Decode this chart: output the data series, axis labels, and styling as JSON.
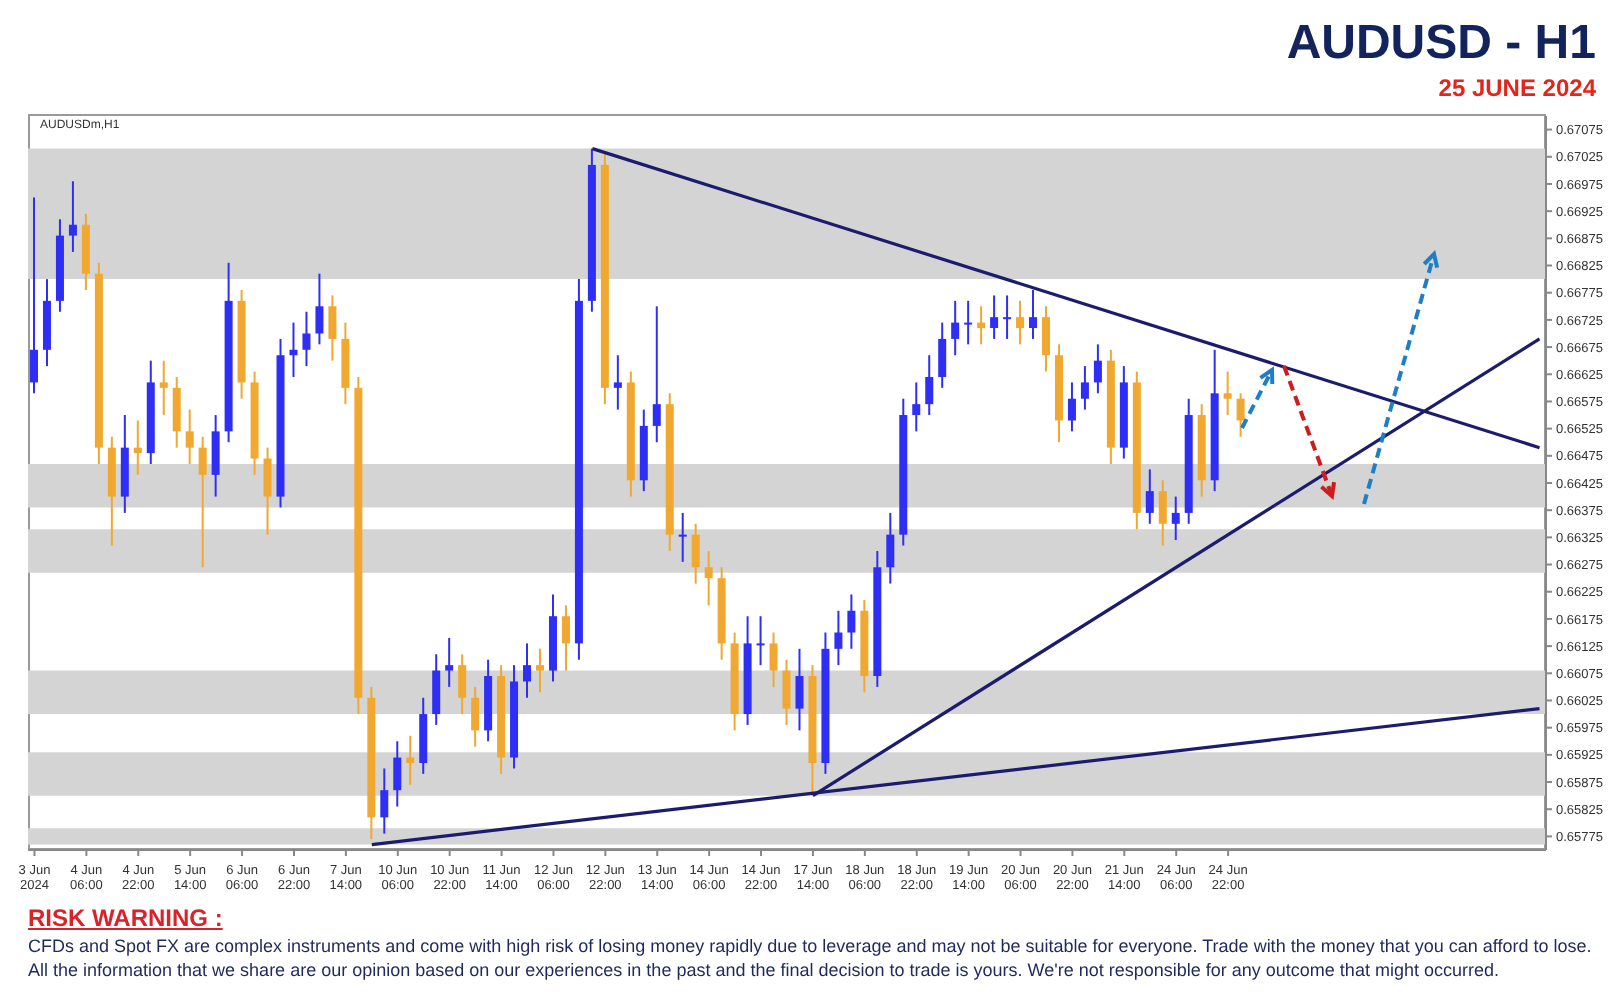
{
  "chart_data": {
    "type": "candlestick",
    "title": "AUDUSD - H1",
    "subtitle": "25 JUNE 2024",
    "annotations": [
      "AUDUSDm,H1",
      "RISK WARNING :",
      "CFDs and Spot FX are complex instruments and come with high risk of losing money rapidly due to leverage and may not be suitable for everyone. Trade with the money that you can afford to lose. All the information that we share are our opinion based on our experiences in the past and the final decision to trade is yours. We're not responsible for any outcome that might occurred."
    ],
    "categories": [
      "3 Jun 2024",
      null,
      null,
      null,
      "4 Jun 06:00",
      null,
      null,
      null,
      "4 Jun 22:00",
      null,
      null,
      null,
      "5 Jun 14:00",
      null,
      null,
      null,
      "6 Jun 06:00",
      null,
      null,
      null,
      "6 Jun 22:00",
      null,
      null,
      null,
      "7 Jun 14:00",
      null,
      null,
      null,
      "10 Jun 06:00",
      null,
      null,
      null,
      "10 Jun 22:00",
      null,
      null,
      null,
      "11 Jun 14:00",
      null,
      null,
      null,
      "12 Jun 06:00",
      null,
      null,
      null,
      "12 Jun 22:00",
      null,
      null,
      null,
      "13 Jun 14:00",
      null,
      null,
      null,
      "14 Jun 06:00",
      null,
      null,
      null,
      "14 Jun 22:00",
      null,
      null,
      null,
      "17 Jun 14:00",
      null,
      null,
      null,
      "18 Jun 06:00",
      null,
      null,
      null,
      "18 Jun 22:00",
      null,
      null,
      null,
      "19 Jun 14:00",
      null,
      null,
      null,
      "20 Jun 06:00",
      null,
      null,
      null,
      "20 Jun 22:00",
      null,
      null,
      null,
      "21 Jun 14:00",
      null,
      null,
      null,
      "24 Jun 06:00",
      null,
      null,
      null,
      "24 Jun 22:00",
      null,
      null,
      null,
      null,
      null,
      null,
      null,
      null,
      null,
      null,
      null,
      null,
      null,
      null,
      null,
      null,
      null,
      null,
      null,
      null,
      null,
      null,
      null,
      null
    ],
    "ohlc": [
      [
        0.6661,
        0.6695,
        0.6659,
        0.6667
      ],
      [
        0.6667,
        0.668,
        0.6664,
        0.6676
      ],
      [
        0.6676,
        0.6691,
        0.6674,
        0.6688
      ],
      [
        0.6688,
        0.6698,
        0.6685,
        0.669
      ],
      [
        0.669,
        0.6692,
        0.6678,
        0.6681
      ],
      [
        0.6681,
        0.6683,
        0.6646,
        0.6649
      ],
      [
        0.6649,
        0.6651,
        0.6631,
        0.664
      ],
      [
        0.664,
        0.6655,
        0.6637,
        0.6649
      ],
      [
        0.6649,
        0.6654,
        0.6644,
        0.6648
      ],
      [
        0.6648,
        0.6665,
        0.6646,
        0.6661
      ],
      [
        0.6661,
        0.6665,
        0.6655,
        0.666
      ],
      [
        0.666,
        0.6662,
        0.6649,
        0.6652
      ],
      [
        0.6652,
        0.6656,
        0.6646,
        0.6649
      ],
      [
        0.6649,
        0.6651,
        0.6627,
        0.6644
      ],
      [
        0.6644,
        0.6655,
        0.664,
        0.6652
      ],
      [
        0.6652,
        0.6683,
        0.665,
        0.6676
      ],
      [
        0.6676,
        0.6678,
        0.6658,
        0.6661
      ],
      [
        0.6661,
        0.6663,
        0.6644,
        0.6647
      ],
      [
        0.6647,
        0.6649,
        0.6633,
        0.664
      ],
      [
        0.664,
        0.6669,
        0.6638,
        0.6666
      ],
      [
        0.6666,
        0.6672,
        0.6662,
        0.6667
      ],
      [
        0.6667,
        0.6674,
        0.6664,
        0.667
      ],
      [
        0.667,
        0.6681,
        0.6668,
        0.6675
      ],
      [
        0.6675,
        0.6677,
        0.6665,
        0.6669
      ],
      [
        0.6669,
        0.6672,
        0.6657,
        0.666
      ],
      [
        0.666,
        0.6662,
        0.66,
        0.6603
      ],
      [
        0.6603,
        0.6605,
        0.6577,
        0.6581
      ],
      [
        0.6581,
        0.659,
        0.6578,
        0.6586
      ],
      [
        0.6586,
        0.6595,
        0.6583,
        0.6592
      ],
      [
        0.6592,
        0.6596,
        0.6587,
        0.6591
      ],
      [
        0.6591,
        0.6603,
        0.6589,
        0.66
      ],
      [
        0.66,
        0.6611,
        0.6598,
        0.6608
      ],
      [
        0.6608,
        0.6614,
        0.6605,
        0.6609
      ],
      [
        0.6609,
        0.6611,
        0.66,
        0.6603
      ],
      [
        0.6603,
        0.6605,
        0.6594,
        0.6597
      ],
      [
        0.6597,
        0.661,
        0.6595,
        0.6607
      ],
      [
        0.6607,
        0.6609,
        0.6589,
        0.6592
      ],
      [
        0.6592,
        0.6609,
        0.659,
        0.6606
      ],
      [
        0.6606,
        0.6613,
        0.6603,
        0.6609
      ],
      [
        0.6609,
        0.6612,
        0.6604,
        0.6608
      ],
      [
        0.6608,
        0.6622,
        0.6606,
        0.6618
      ],
      [
        0.6618,
        0.662,
        0.6608,
        0.6613
      ],
      [
        0.6613,
        0.668,
        0.661,
        0.6676
      ],
      [
        0.6676,
        0.6704,
        0.6674,
        0.6701
      ],
      [
        0.6701,
        0.6703,
        0.6657,
        0.666
      ],
      [
        0.666,
        0.6666,
        0.6656,
        0.6661
      ],
      [
        0.6661,
        0.6663,
        0.664,
        0.6643
      ],
      [
        0.6643,
        0.6656,
        0.6641,
        0.6653
      ],
      [
        0.6653,
        0.6675,
        0.665,
        0.6657
      ],
      [
        0.6657,
        0.6659,
        0.663,
        0.6633
      ],
      [
        0.6633,
        0.6637,
        0.6628,
        0.6633
      ],
      [
        0.6633,
        0.6635,
        0.6624,
        0.6627
      ],
      [
        0.6627,
        0.663,
        0.662,
        0.6625
      ],
      [
        0.6625,
        0.6627,
        0.661,
        0.6613
      ],
      [
        0.6613,
        0.6615,
        0.6597,
        0.66
      ],
      [
        0.66,
        0.6618,
        0.6598,
        0.6613
      ],
      [
        0.6613,
        0.6618,
        0.6609,
        0.6613
      ],
      [
        0.6613,
        0.6615,
        0.6605,
        0.6608
      ],
      [
        0.6608,
        0.661,
        0.6598,
        0.6601
      ],
      [
        0.6601,
        0.6612,
        0.6597,
        0.6607
      ],
      [
        0.6607,
        0.6609,
        0.6585,
        0.6591
      ],
      [
        0.6591,
        0.6615,
        0.6589,
        0.6612
      ],
      [
        0.6612,
        0.6619,
        0.6609,
        0.6615
      ],
      [
        0.6615,
        0.6622,
        0.6612,
        0.6619
      ],
      [
        0.6619,
        0.6621,
        0.6604,
        0.6607
      ],
      [
        0.6607,
        0.663,
        0.6605,
        0.6627
      ],
      [
        0.6627,
        0.6637,
        0.6624,
        0.6633
      ],
      [
        0.6633,
        0.6658,
        0.6631,
        0.6655
      ],
      [
        0.6655,
        0.6661,
        0.6652,
        0.6657
      ],
      [
        0.6657,
        0.6666,
        0.6655,
        0.6662
      ],
      [
        0.6662,
        0.6672,
        0.666,
        0.6669
      ],
      [
        0.6669,
        0.6676,
        0.6666,
        0.6672
      ],
      [
        0.6672,
        0.6676,
        0.6668,
        0.6672
      ],
      [
        0.6672,
        0.6675,
        0.6668,
        0.6671
      ],
      [
        0.6671,
        0.6677,
        0.6669,
        0.6673
      ],
      [
        0.6673,
        0.6677,
        0.6669,
        0.6673
      ],
      [
        0.6673,
        0.6676,
        0.6668,
        0.6671
      ],
      [
        0.6671,
        0.6678,
        0.6669,
        0.6673
      ],
      [
        0.6673,
        0.6675,
        0.6663,
        0.6666
      ],
      [
        0.6666,
        0.6668,
        0.665,
        0.6654
      ],
      [
        0.6654,
        0.6661,
        0.6652,
        0.6658
      ],
      [
        0.6658,
        0.6664,
        0.6656,
        0.6661
      ],
      [
        0.6661,
        0.6668,
        0.6659,
        0.6665
      ],
      [
        0.6665,
        0.6667,
        0.6646,
        0.6649
      ],
      [
        0.6649,
        0.6664,
        0.6647,
        0.6661
      ],
      [
        0.6661,
        0.6663,
        0.6634,
        0.6637
      ],
      [
        0.6637,
        0.6645,
        0.6635,
        0.6641
      ],
      [
        0.6641,
        0.6643,
        0.6631,
        0.6635
      ],
      [
        0.6635,
        0.664,
        0.6632,
        0.6637
      ],
      [
        0.6637,
        0.6658,
        0.6635,
        0.6655
      ],
      [
        0.6655,
        0.6657,
        0.664,
        0.6643
      ],
      [
        0.6643,
        0.6667,
        0.6641,
        0.6659
      ],
      [
        0.6659,
        0.6663,
        0.6655,
        0.6658
      ],
      [
        0.6658,
        0.6659,
        0.6651,
        0.6654
      ],
      null,
      null,
      null,
      null,
      null,
      null,
      null,
      null,
      null,
      null,
      null,
      null,
      null,
      null,
      null,
      null,
      null,
      null,
      null,
      null,
      null,
      null,
      null
    ],
    "colors": [
      "#2e2ef5",
      "#2e2ef5",
      "#2e2ef5",
      "#2e2ef5",
      "#f0a830",
      "#f0a830",
      "#f0a830",
      "#2e2ef5",
      "#f0a830",
      "#2e2ef5",
      "#f0a830",
      "#f0a830",
      "#f0a830",
      "#f0a830",
      "#2e2ef5",
      "#2e2ef5",
      "#f0a830",
      "#f0a830",
      "#f0a830",
      "#2e2ef5",
      "#2e2ef5",
      "#2e2ef5",
      "#2e2ef5",
      "#f0a830",
      "#f0a830",
      "#f0a830",
      "#f0a830",
      "#2e2ef5",
      "#2e2ef5",
      "#f0a830",
      "#2e2ef5",
      "#2e2ef5",
      "#2e2ef5",
      "#f0a830",
      "#f0a830",
      "#2e2ef5",
      "#f0a830",
      "#2e2ef5",
      "#2e2ef5",
      "#f0a830",
      "#2e2ef5",
      "#f0a830",
      "#2e2ef5",
      "#2e2ef5",
      "#f0a830",
      "#2e2ef5",
      "#f0a830",
      "#2e2ef5",
      "#2e2ef5",
      "#f0a830",
      "#2e2ef5",
      "#f0a830",
      "#f0a830",
      "#f0a830",
      "#f0a830",
      "#2e2ef5",
      "#2e2ef5",
      "#f0a830",
      "#f0a830",
      "#2e2ef5",
      "#f0a830",
      "#2e2ef5",
      "#2e2ef5",
      "#2e2ef5",
      "#f0a830",
      "#2e2ef5",
      "#2e2ef5",
      "#2e2ef5",
      "#2e2ef5",
      "#2e2ef5",
      "#2e2ef5",
      "#2e2ef5",
      "#2e2ef5",
      "#f0a830",
      "#2e2ef5",
      "#2e2ef5",
      "#f0a830",
      "#2e2ef5",
      "#f0a830",
      "#f0a830",
      "#2e2ef5",
      "#2e2ef5",
      "#2e2ef5",
      "#f0a830",
      "#2e2ef5",
      "#f0a830",
      "#2e2ef5",
      "#f0a830",
      "#2e2ef5",
      "#2e2ef5",
      "#f0a830",
      "#2e2ef5",
      "#f0a830",
      "#f0a830",
      null,
      null,
      null,
      null,
      null,
      null,
      null,
      null,
      null,
      null,
      null,
      null,
      null,
      null,
      null,
      null,
      null,
      null,
      null,
      null,
      null,
      null,
      null
    ],
    "series": [
      {
        "type": "line",
        "color": "#1c1c6e",
        "values": [
          null,
          null,
          null,
          null,
          null,
          null,
          null,
          null,
          null,
          null,
          null,
          null,
          null,
          null,
          null,
          null,
          null,
          null,
          null,
          null,
          null,
          null,
          null,
          null,
          null,
          null,
          null,
          null,
          null,
          null,
          null,
          null,
          null,
          null,
          null,
          null,
          null,
          null,
          null,
          null,
          null,
          null,
          null,
          0.6704,
          null,
          null,
          null,
          null,
          null,
          null,
          null,
          null,
          null,
          null,
          null,
          null,
          null,
          null,
          null,
          null,
          null,
          null,
          null,
          null,
          null,
          null,
          null,
          null,
          null,
          null,
          null,
          null,
          null,
          null,
          null,
          null,
          null,
          null,
          null,
          null,
          null,
          null,
          null,
          null,
          null,
          null,
          null,
          null,
          null,
          null,
          null,
          null,
          null,
          null,
          null,
          null,
          null,
          null,
          null,
          null,
          null,
          null,
          null,
          null,
          null,
          null,
          null,
          null,
          null,
          null,
          null,
          null,
          null,
          null,
          null,
          null,
          0.6649
        ]
      },
      {
        "type": "line",
        "color": "#1c1c6e",
        "values": [
          null,
          null,
          null,
          null,
          null,
          null,
          null,
          null,
          null,
          null,
          null,
          null,
          null,
          null,
          null,
          null,
          null,
          null,
          null,
          null,
          null,
          null,
          null,
          null,
          null,
          null,
          null,
          null,
          null,
          null,
          null,
          null,
          null,
          null,
          null,
          null,
          null,
          null,
          null,
          null,
          null,
          null,
          null,
          null,
          null,
          null,
          null,
          null,
          null,
          null,
          null,
          null,
          null,
          null,
          null,
          null,
          null,
          null,
          null,
          null,
          0.6585,
          null,
          null,
          null,
          null,
          null,
          null,
          null,
          null,
          null,
          null,
          null,
          null,
          null,
          null,
          null,
          null,
          null,
          null,
          null,
          null,
          null,
          null,
          null,
          null,
          null,
          null,
          null,
          null,
          null,
          null,
          null,
          null,
          null,
          null,
          null,
          null,
          null,
          null,
          null,
          null,
          null,
          null,
          null,
          null,
          null,
          null,
          null,
          null,
          null,
          null,
          null,
          null,
          null,
          null,
          null,
          0.6669
        ]
      },
      {
        "type": "line",
        "color": "#1c1c6e",
        "values": [
          null,
          null,
          null,
          null,
          null,
          null,
          null,
          null,
          null,
          null,
          null,
          null,
          null,
          null,
          null,
          null,
          null,
          null,
          null,
          null,
          null,
          null,
          null,
          null,
          null,
          null,
          0.6576,
          null,
          null,
          null,
          null,
          null,
          null,
          null,
          null,
          null,
          null,
          null,
          null,
          null,
          null,
          null,
          null,
          null,
          null,
          null,
          null,
          null,
          null,
          null,
          null,
          null,
          null,
          null,
          null,
          null,
          null,
          null,
          null,
          null,
          null,
          null,
          null,
          null,
          null,
          null,
          null,
          null,
          null,
          null,
          null,
          null,
          null,
          null,
          null,
          null,
          null,
          null,
          null,
          null,
          null,
          null,
          null,
          null,
          null,
          null,
          null,
          null,
          null,
          null,
          null,
          null,
          null,
          null,
          null,
          null,
          null,
          null,
          null,
          null,
          null,
          null,
          null,
          null,
          null,
          null,
          null,
          null,
          null,
          null,
          null,
          null,
          null,
          null,
          null,
          null,
          0.6601
        ]
      }
    ],
    "bands": [
      {
        "axis": "y",
        "from": 0.668,
        "to": 0.6704,
        "color": "#d4d4d4"
      },
      {
        "axis": "y",
        "from": 0.6638,
        "to": 0.6646,
        "color": "#d4d4d4"
      },
      {
        "axis": "y",
        "from": 0.6626,
        "to": 0.6634,
        "color": "#d4d4d4"
      },
      {
        "axis": "y",
        "from": 0.66,
        "to": 0.6608,
        "color": "#d4d4d4"
      },
      {
        "axis": "y",
        "from": 0.6585,
        "to": 0.6593,
        "color": "#d4d4d4"
      },
      {
        "axis": "y",
        "from": 0.6576,
        "to": 0.6579,
        "color": "#d4d4d4"
      }
    ],
    "ylim": [
      0.6575,
      0.671
    ],
    "yticks": [
      0.65775,
      0.65825,
      0.65875,
      0.65925,
      0.65975,
      0.66025,
      0.66075,
      0.66125,
      0.66175,
      0.66225,
      0.66275,
      0.66325,
      0.66375,
      0.66425,
      0.66475,
      0.66525,
      0.66575,
      0.66625,
      0.66675,
      0.66725,
      0.66775,
      0.66825,
      0.66875,
      0.66925,
      0.66975,
      0.67025,
      0.67075
    ]
  }
}
